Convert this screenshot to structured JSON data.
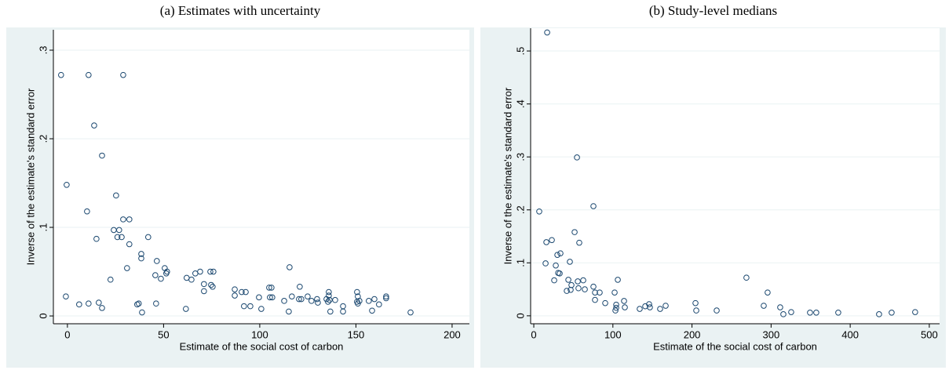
{
  "chart_data": [
    {
      "type": "scatter",
      "title": "(a) Estimates with uncertainty",
      "x_label": "Estimate of the social cost of carbon",
      "y_label": "Inverse of the estimate's standard error",
      "color": "#1a476f",
      "grid": true,
      "xlim": [
        -7.3,
        209
      ],
      "ylim": [
        -0.0088,
        0.323
      ],
      "xticks": [
        0,
        50,
        100,
        150,
        200
      ],
      "yticks": [
        0,
        {
          "value": 0.1,
          "label": ".1"
        },
        {
          "value": 0.2,
          "label": ".2"
        },
        {
          "value": 0.3,
          "label": ".3"
        }
      ],
      "x": [
        -3.3,
        11,
        29,
        13.9,
        18,
        25.3,
        -0.4,
        10.2,
        29,
        32.2,
        15.1,
        24.1,
        26.9,
        26,
        28.2,
        42,
        32.2,
        38.4,
        38.4,
        31,
        22.4,
        46.5,
        50.6,
        51.8,
        51.4,
        45.7,
        48.6,
        -0.8,
        6.1,
        11,
        16.3,
        18,
        36.3,
        37.1,
        38.8,
        46.1,
        62,
        64.5,
        66.5,
        69,
        71,
        71,
        61.6,
        74.3,
        75.9,
        74.7,
        75.5,
        87,
        87,
        90.6,
        92.7,
        91.8,
        95.1,
        99.6,
        100.8,
        104.9,
        106.1,
        105.3,
        106.5,
        115.5,
        112.7,
        115.1,
        116.7,
        120.8,
        120.4,
        121.6,
        124.9,
        126.9,
        129.8,
        130.2,
        134.7,
        135.9,
        135.9,
        135.5,
        136.3,
        136.7,
        139.2,
        143.3,
        143.3,
        150.6,
        151,
        150.6,
        151,
        151.8,
        156.7,
        159.6,
        158.4,
        162,
        165.7,
        165.7,
        178.4
      ],
      "values": [
        0.272,
        0.272,
        0.272,
        0.215,
        0.181,
        0.136,
        0.148,
        0.118,
        0.109,
        0.109,
        0.087,
        0.097,
        0.097,
        0.089,
        0.089,
        0.089,
        0.081,
        0.07,
        0.065,
        0.054,
        0.041,
        0.062,
        0.054,
        0.05,
        0.048,
        0.046,
        0.042,
        0.022,
        0.013,
        0.014,
        0.015,
        0.009,
        0.013,
        0.014,
        0.004,
        0.014,
        0.043,
        0.041,
        0.048,
        0.05,
        0.036,
        0.028,
        0.008,
        0.05,
        0.05,
        0.035,
        0.033,
        0.03,
        0.023,
        0.027,
        0.027,
        0.011,
        0.011,
        0.021,
        0.008,
        0.032,
        0.032,
        0.021,
        0.021,
        0.055,
        0.017,
        0.005,
        0.022,
        0.033,
        0.019,
        0.019,
        0.022,
        0.017,
        0.019,
        0.015,
        0.019,
        0.027,
        0.023,
        0.016,
        0.018,
        0.005,
        0.018,
        0.011,
        0.005,
        0.027,
        0.022,
        0.016,
        0.014,
        0.017,
        0.017,
        0.019,
        0.006,
        0.013,
        0.022,
        0.02,
        0.004
      ]
    },
    {
      "type": "scatter",
      "title": "(b) Study-level medians",
      "x_label": "Estimate of the social cost of carbon",
      "y_label": "Inverse of the estimate's standard error",
      "color": "#1a476f",
      "grid": true,
      "xlim": [
        -4,
        513
      ],
      "ylim": [
        -0.015,
        0.543
      ],
      "xticks": [
        0,
        100,
        200,
        300,
        400,
        500
      ],
      "yticks": [
        0,
        {
          "value": 0.1,
          "label": ".1"
        },
        {
          "value": 0.2,
          "label": ".2"
        },
        {
          "value": 0.3,
          "label": ".3"
        },
        {
          "value": 0.4,
          "label": ".4"
        },
        {
          "value": 0.5,
          "label": ".5"
        }
      ],
      "x": [
        6.9,
        16.9,
        15.9,
        22.8,
        14.9,
        25.8,
        27.8,
        29.8,
        33.7,
        30.8,
        32.7,
        43.7,
        45.6,
        41.7,
        46.6,
        47.6,
        51.6,
        54.6,
        57.5,
        55.6,
        56.5,
        62.5,
        64.5,
        75.4,
        75.4,
        77.4,
        77.4,
        83.3,
        90.3,
        102.2,
        104.2,
        106.2,
        104.2,
        103.2,
        114.1,
        115.1,
        133.9,
        140.9,
        145.8,
        146.8,
        159.7,
        166.7,
        204.4,
        205.4,
        231.2,
        268.8,
        290.7,
        295.6,
        311.5,
        315.5,
        325.4,
        349.2,
        357.1,
        384.9,
        436.5,
        452.4,
        482.1
      ],
      "values": [
        0.197,
        0.535,
        0.139,
        0.143,
        0.099,
        0.067,
        0.095,
        0.115,
        0.118,
        0.081,
        0.08,
        0.068,
        0.102,
        0.047,
        0.049,
        0.058,
        0.158,
        0.299,
        0.138,
        0.065,
        0.052,
        0.067,
        0.05,
        0.207,
        0.055,
        0.044,
        0.03,
        0.044,
        0.024,
        0.044,
        0.021,
        0.068,
        0.015,
        0.01,
        0.028,
        0.016,
        0.013,
        0.018,
        0.022,
        0.016,
        0.013,
        0.019,
        0.024,
        0.01,
        0.01,
        0.072,
        0.019,
        0.044,
        0.016,
        0.003,
        0.007,
        0.006,
        0.006,
        0.006,
        0.003,
        0.006,
        0.007
      ]
    }
  ]
}
